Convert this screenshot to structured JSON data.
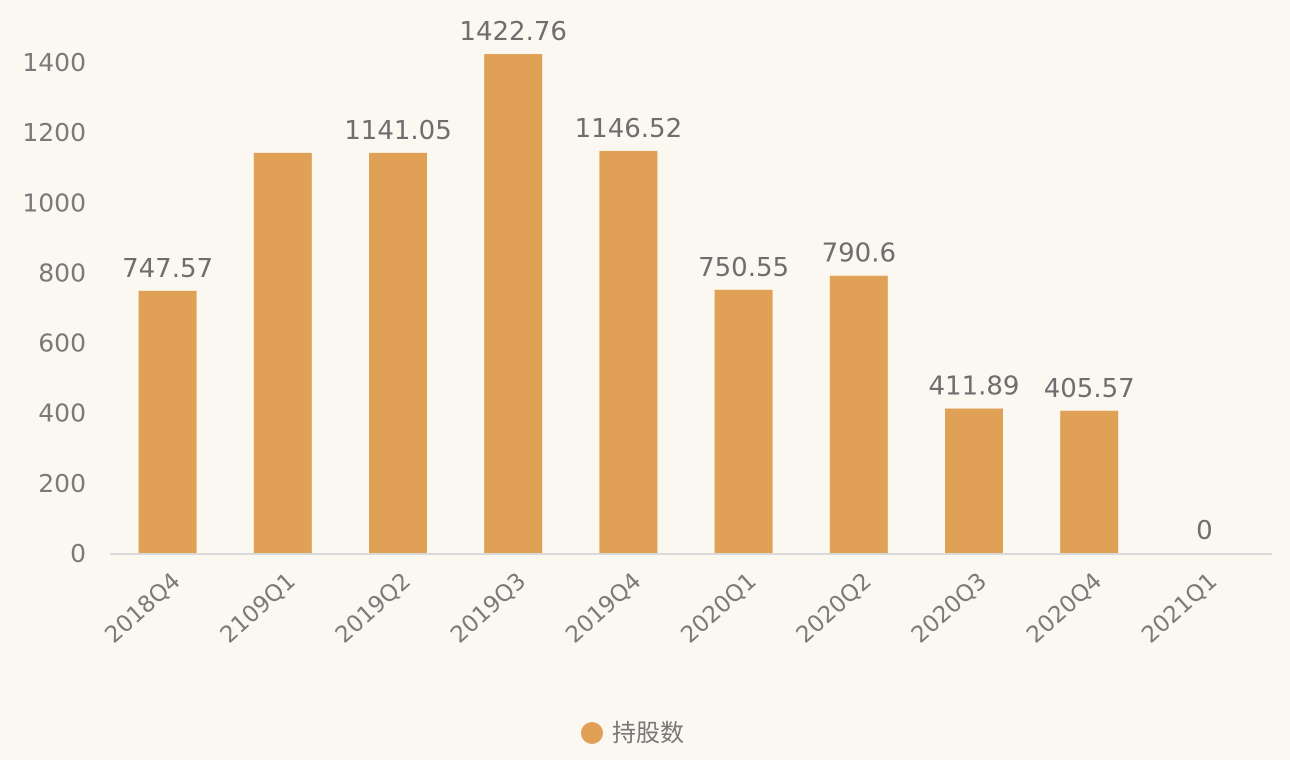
{
  "chart_data": {
    "type": "bar",
    "categories": [
      "2018Q4",
      "2109Q1",
      "2019Q2",
      "2019Q3",
      "2019Q4",
      "2020Q1",
      "2020Q2",
      "2020Q3",
      "2020Q4",
      "2021Q1"
    ],
    "series": [
      {
        "name": "持股数",
        "values": [
          747.57,
          1141.05,
          1141.05,
          1422.76,
          1146.52,
          750.55,
          790.6,
          411.89,
          405.57,
          0
        ],
        "data_labels": [
          "747.57",
          "",
          "1141.05",
          "1422.76",
          "1146.52",
          "750.55",
          "790.6",
          "411.89",
          "405.57",
          "0"
        ],
        "color": "#e0a055"
      }
    ],
    "yticks": [
      0,
      200,
      400,
      600,
      800,
      1000,
      1200,
      1400
    ],
    "ylim": [
      0,
      1440
    ],
    "grid": false,
    "legend_position": "bottom-center",
    "colors": {
      "background": "#fbf8f1",
      "bar": "#e0a055",
      "axis": "#d9d9d9",
      "text": "#7a7a7a"
    }
  }
}
